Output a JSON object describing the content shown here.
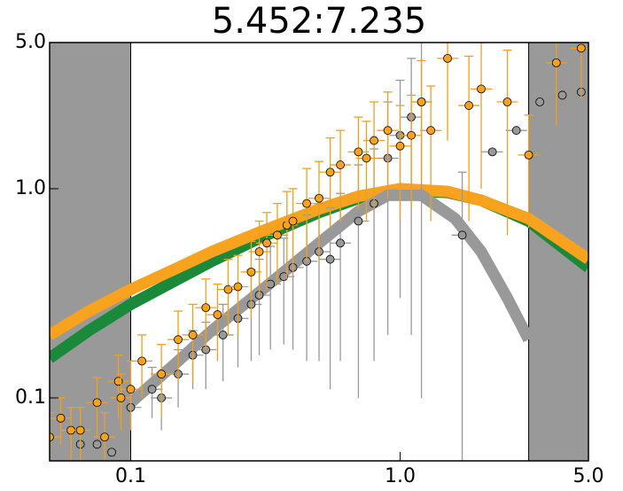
{
  "chart_data": {
    "type": "scatter",
    "title": "5.452:7.235",
    "xlog": true,
    "ylog": true,
    "xlim": [
      0.05,
      5
    ],
    "ylim": [
      0.05,
      5
    ],
    "xticks": [
      0.1,
      {
        "value": 1,
        "label": "1.0"
      },
      {
        "value": 5,
        "label": "5.0"
      }
    ],
    "yticks": [
      0.1,
      {
        "value": 1,
        "label": "1.0"
      },
      {
        "value": 5,
        "label": "5.0"
      }
    ],
    "shaded_regions": [
      [
        0.05,
        0.1
      ],
      [
        3,
        5
      ]
    ],
    "shade_color": "#999999",
    "curves": [
      {
        "color": "#1a8a3a",
        "x": [
          0.05,
          0.07,
          0.1,
          0.15,
          0.2,
          0.3,
          0.5,
          0.7,
          1,
          1.5,
          2,
          3,
          5
        ],
        "values": [
          0.155,
          0.21,
          0.28,
          0.37,
          0.45,
          0.58,
          0.77,
          0.9,
          0.98,
          0.96,
          0.88,
          0.7,
          0.42
        ]
      },
      {
        "color": "#f9a21e",
        "x": [
          0.05,
          0.07,
          0.1,
          0.15,
          0.2,
          0.3,
          0.5,
          0.7,
          1,
          1.5,
          2,
          3,
          5
        ],
        "values": [
          0.2,
          0.26,
          0.33,
          0.42,
          0.5,
          0.62,
          0.8,
          0.92,
          1.0,
          0.97,
          0.88,
          0.72,
          0.46
        ]
      },
      {
        "color": "#999999",
        "x": [
          0.1,
          0.15,
          0.2,
          0.3,
          0.5,
          0.7,
          0.9,
          1.2,
          1.6,
          2,
          2.5,
          3
        ],
        "values": [
          0.095,
          0.15,
          0.21,
          0.32,
          0.55,
          0.78,
          0.93,
          0.93,
          0.72,
          0.5,
          0.3,
          0.19
        ]
      }
    ],
    "series": [
      {
        "color": "#999999",
        "err_color": "#999999",
        "x": [
          0.065,
          0.075,
          0.085,
          0.1,
          0.12,
          0.13,
          0.15,
          0.17,
          0.19,
          0.22,
          0.25,
          0.28,
          0.3,
          0.33,
          0.37,
          0.4,
          0.45,
          0.5,
          0.55,
          0.6,
          0.7,
          0.8,
          0.9,
          1.0,
          1.1,
          1.2,
          1.7,
          2.2,
          2.7,
          3.3,
          4.0,
          4.7
        ],
        "values": [
          0.06,
          0.06,
          0.055,
          0.09,
          0.11,
          0.1,
          0.13,
          0.16,
          0.17,
          0.2,
          0.24,
          0.28,
          0.31,
          0.35,
          0.38,
          0.42,
          0.45,
          0.5,
          0.46,
          0.55,
          0.7,
          0.85,
          1.4,
          1.8,
          2.2,
          2.6,
          0.6,
          1.5,
          1.9,
          2.6,
          2.8,
          2.9
        ],
        "yerr": [
          0.01,
          0.01,
          0.01,
          0.02,
          0.03,
          0.03,
          0.04,
          0.05,
          0.06,
          0.08,
          0.1,
          0.13,
          0.15,
          0.18,
          0.2,
          0.25,
          0.3,
          0.35,
          0.35,
          0.4,
          0.6,
          0.7,
          1.2,
          1.5,
          2,
          2.5,
          0.6,
          0,
          0,
          0,
          0,
          0
        ]
      },
      {
        "color": "#f9a21e",
        "err_color": "#f0a020",
        "x": [
          0.05,
          0.055,
          0.06,
          0.065,
          0.075,
          0.08,
          0.09,
          0.092,
          0.1,
          0.11,
          0.13,
          0.15,
          0.17,
          0.19,
          0.21,
          0.23,
          0.25,
          0.28,
          0.3,
          0.32,
          0.35,
          0.38,
          0.4,
          0.45,
          0.5,
          0.55,
          0.6,
          0.7,
          0.75,
          0.8,
          0.9,
          1.0,
          1.1,
          1.2,
          1.3,
          1.5,
          1.8,
          2.0,
          2.5,
          3.0,
          3.8,
          4.7
        ],
        "values": [
          0.065,
          0.08,
          0.07,
          0.07,
          0.095,
          0.065,
          0.12,
          0.1,
          0.11,
          0.15,
          0.13,
          0.19,
          0.2,
          0.27,
          0.25,
          0.33,
          0.34,
          0.4,
          0.5,
          0.55,
          0.6,
          0.67,
          0.7,
          0.85,
          0.9,
          1.2,
          1.3,
          1.5,
          1.4,
          1.7,
          1.9,
          1.6,
          1.8,
          2.6,
          1.9,
          4.2,
          2.5,
          3.0,
          2.6,
          1.45,
          4.0,
          4.7
        ],
        "yerr": [
          0.02,
          0.02,
          0.02,
          0.02,
          0.03,
          0.02,
          0.04,
          0.03,
          0.04,
          0.05,
          0.05,
          0.07,
          0.08,
          0.1,
          0.1,
          0.13,
          0.14,
          0.16,
          0.2,
          0.22,
          0.25,
          0.3,
          0.3,
          0.4,
          0.45,
          0.55,
          0.6,
          0.7,
          0.7,
          0.9,
          1.0,
          0.9,
          1.0,
          1.5,
          1.2,
          2.5,
          1.8,
          2.0,
          2.0,
          0.8,
          2.0,
          2.0
        ]
      }
    ]
  }
}
